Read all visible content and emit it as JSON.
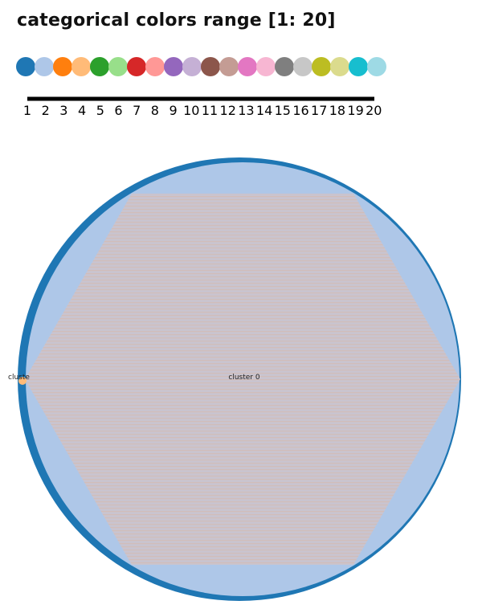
{
  "title": "categorical colors range [1: 20]",
  "palette": {
    "colors": [
      "#1f77b4",
      "#aec7e8",
      "#ff7f0e",
      "#ffbb78",
      "#2ca02c",
      "#98df8a",
      "#d62728",
      "#ff9896",
      "#9467bd",
      "#c5b0d5",
      "#8c564b",
      "#c49c94",
      "#e377c2",
      "#f7b6d2",
      "#7f7f7f",
      "#c7c7c7",
      "#bcbd22",
      "#dbdb8d",
      "#17becf",
      "#9edae5"
    ],
    "ticks": [
      "1",
      "2",
      "3",
      "4",
      "5",
      "6",
      "7",
      "8",
      "9",
      "10",
      "11",
      "12",
      "13",
      "14",
      "15",
      "16",
      "17",
      "18",
      "19",
      "20"
    ]
  },
  "diagram": {
    "outer_circle_color": "#1f77b4",
    "inner_circle_color": "#aec7e8",
    "hexagon_color": "#c9c4cf",
    "hexagon_stripe_color": "#d6b7a8",
    "small_node_color": "#ffbb78",
    "center_label": "cluster 0",
    "left_label": "cluste"
  }
}
